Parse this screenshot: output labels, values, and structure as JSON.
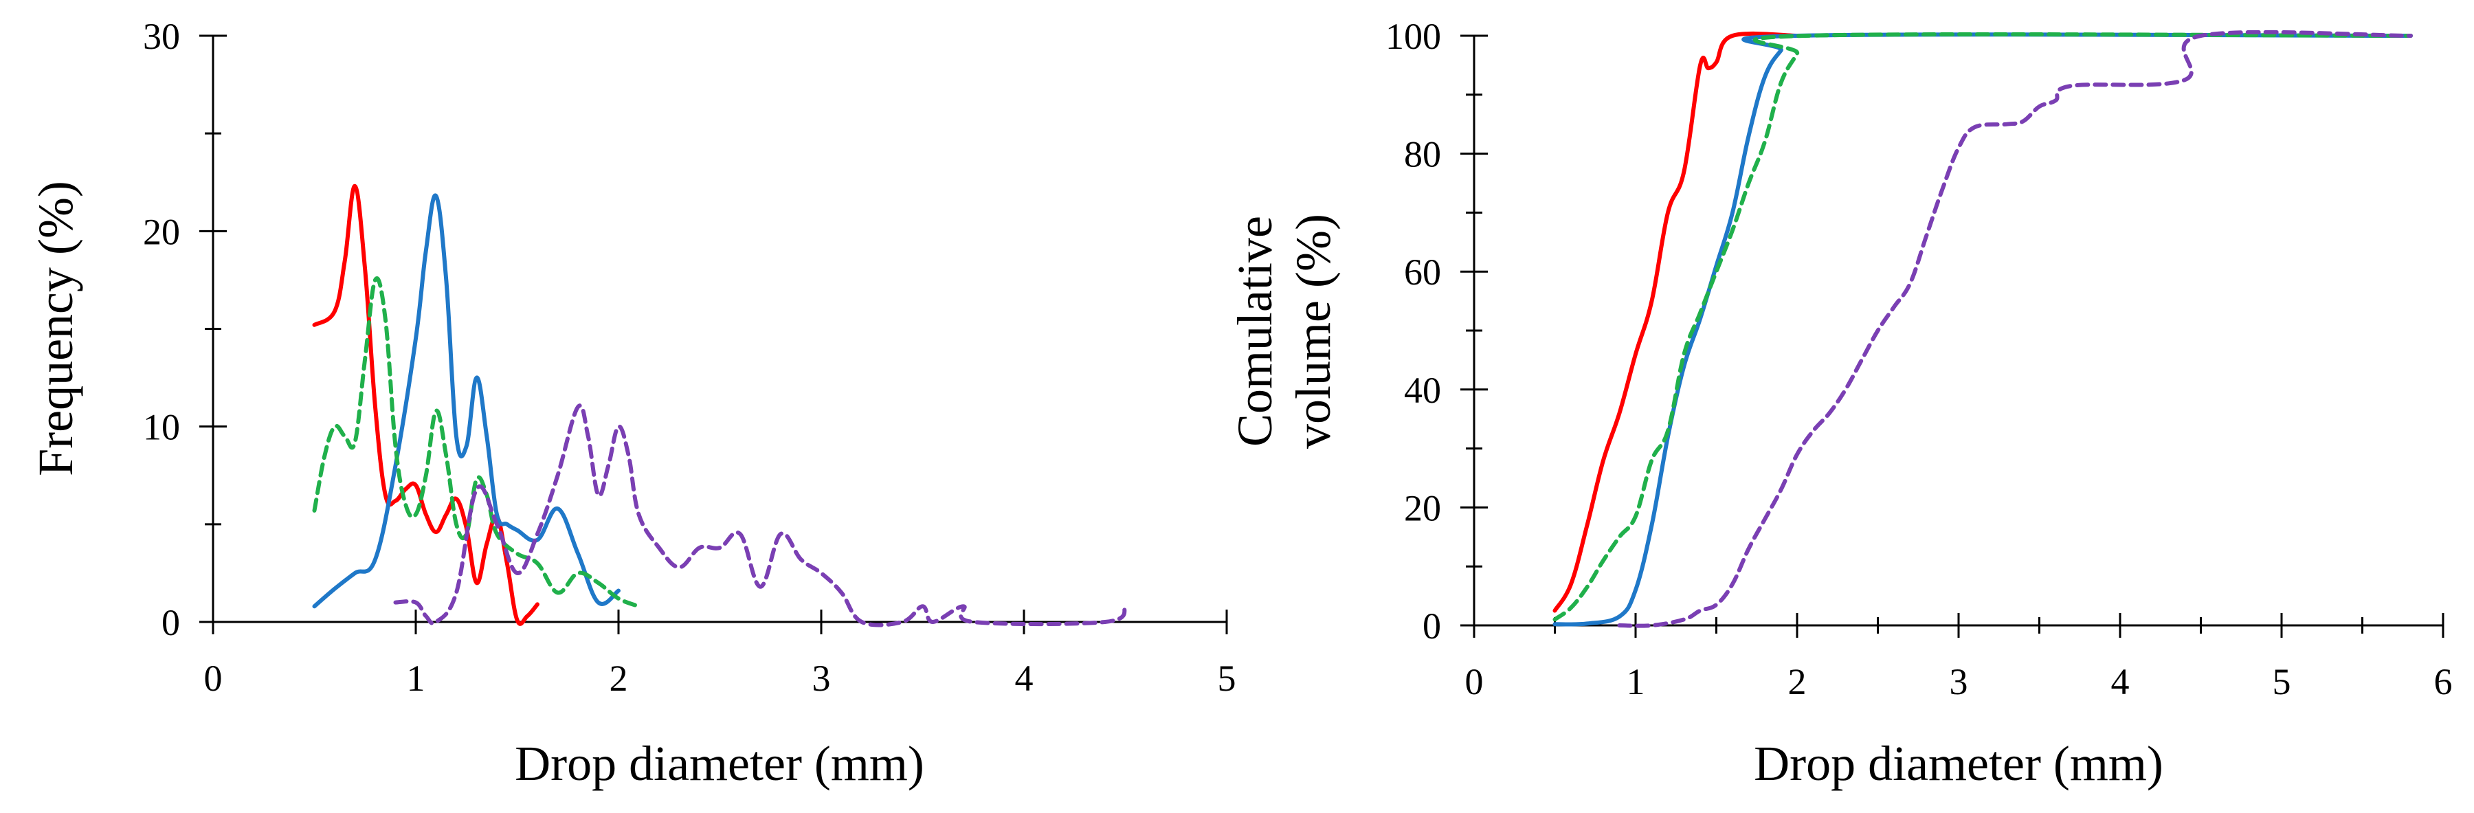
{
  "chart_data": [
    {
      "type": "line",
      "xlabel": "Drop diameter (mm)",
      "ylabel": "Frequency (%)",
      "xlim": [
        0,
        5
      ],
      "ylim": [
        0,
        30
      ],
      "xticks": [
        "0",
        "1",
        "2",
        "3",
        "4",
        "5"
      ],
      "yticks": [
        "0",
        "10",
        "20",
        "30"
      ],
      "grid": false,
      "series": [
        {
          "name": "series-red-solid",
          "color": "#ff0000",
          "dash": "solid",
          "points": [
            [
              0.5,
              15.2
            ],
            [
              0.6,
              15.9
            ],
            [
              0.65,
              18.5
            ],
            [
              0.7,
              22.3
            ],
            [
              0.75,
              18.0
            ],
            [
              0.8,
              11.0
            ],
            [
              0.85,
              6.5
            ],
            [
              0.9,
              6.2
            ],
            [
              0.95,
              6.8
            ],
            [
              1.0,
              7.0
            ],
            [
              1.05,
              5.5
            ],
            [
              1.1,
              4.6
            ],
            [
              1.15,
              5.5
            ],
            [
              1.2,
              6.3
            ],
            [
              1.25,
              4.8
            ],
            [
              1.3,
              2.0
            ],
            [
              1.35,
              4.0
            ],
            [
              1.4,
              5.4
            ],
            [
              1.45,
              3.0
            ],
            [
              1.5,
              0.1
            ],
            [
              1.55,
              0.3
            ],
            [
              1.6,
              0.9
            ]
          ]
        },
        {
          "name": "series-blue-solid",
          "color": "#1f78c8",
          "dash": "solid",
          "points": [
            [
              0.5,
              0.8
            ],
            [
              0.6,
              1.7
            ],
            [
              0.7,
              2.5
            ],
            [
              0.8,
              3.2
            ],
            [
              0.9,
              8.0
            ],
            [
              1.0,
              14.5
            ],
            [
              1.05,
              19.0
            ],
            [
              1.1,
              21.8
            ],
            [
              1.15,
              17.5
            ],
            [
              1.2,
              9.5
            ],
            [
              1.25,
              9.0
            ],
            [
              1.3,
              12.5
            ],
            [
              1.35,
              9.5
            ],
            [
              1.4,
              5.5
            ],
            [
              1.45,
              5.0
            ],
            [
              1.5,
              4.7
            ],
            [
              1.6,
              4.2
            ],
            [
              1.7,
              5.8
            ],
            [
              1.8,
              3.5
            ],
            [
              1.9,
              1.0
            ],
            [
              2.0,
              1.6
            ]
          ]
        },
        {
          "name": "series-green-dashed",
          "color": "#20b04b",
          "dash": "dashed",
          "points": [
            [
              0.5,
              5.7
            ],
            [
              0.55,
              8.5
            ],
            [
              0.6,
              10.0
            ],
            [
              0.65,
              9.5
            ],
            [
              0.7,
              9.2
            ],
            [
              0.75,
              13.5
            ],
            [
              0.8,
              17.5
            ],
            [
              0.85,
              15.5
            ],
            [
              0.9,
              9.0
            ],
            [
              0.95,
              6.0
            ],
            [
              1.0,
              5.5
            ],
            [
              1.05,
              7.5
            ],
            [
              1.1,
              10.8
            ],
            [
              1.15,
              8.5
            ],
            [
              1.2,
              5.0
            ],
            [
              1.25,
              4.5
            ],
            [
              1.3,
              7.3
            ],
            [
              1.35,
              6.5
            ],
            [
              1.4,
              4.5
            ],
            [
              1.5,
              3.5
            ],
            [
              1.6,
              3.0
            ],
            [
              1.7,
              1.5
            ],
            [
              1.8,
              2.5
            ],
            [
              1.9,
              2.0
            ],
            [
              2.0,
              1.2
            ],
            [
              2.1,
              0.8
            ]
          ]
        },
        {
          "name": "series-purple-dashed",
          "color": "#7a3fb3",
          "dash": "dashed",
          "points": [
            [
              0.9,
              1.0
            ],
            [
              1.0,
              1.0
            ],
            [
              1.05,
              0.3
            ],
            [
              1.1,
              0.0
            ],
            [
              1.2,
              1.5
            ],
            [
              1.3,
              6.8
            ],
            [
              1.4,
              5.0
            ],
            [
              1.5,
              2.5
            ],
            [
              1.6,
              4.5
            ],
            [
              1.7,
              7.5
            ],
            [
              1.8,
              11.0
            ],
            [
              1.85,
              9.5
            ],
            [
              1.9,
              6.5
            ],
            [
              1.95,
              8.0
            ],
            [
              2.0,
              10.0
            ],
            [
              2.05,
              8.5
            ],
            [
              2.1,
              5.5
            ],
            [
              2.2,
              3.8
            ],
            [
              2.3,
              2.8
            ],
            [
              2.4,
              3.8
            ],
            [
              2.5,
              3.8
            ],
            [
              2.6,
              4.5
            ],
            [
              2.7,
              1.8
            ],
            [
              2.8,
              4.5
            ],
            [
              2.9,
              3.2
            ],
            [
              3.0,
              2.5
            ],
            [
              3.1,
              1.5
            ],
            [
              3.2,
              0.0
            ],
            [
              3.4,
              0.0
            ],
            [
              3.5,
              0.8
            ],
            [
              3.55,
              0.0
            ],
            [
              3.7,
              0.8
            ],
            [
              3.75,
              0.0
            ],
            [
              4.4,
              0.0
            ],
            [
              4.5,
              0.8
            ]
          ]
        }
      ]
    },
    {
      "type": "line",
      "xlabel": "Drop diameter (mm)",
      "ylabel_lines": [
        "Comulative",
        "volume (%)"
      ],
      "xlim": [
        0,
        6
      ],
      "ylim": [
        0,
        100
      ],
      "xticks": [
        "0",
        "1",
        "2",
        "3",
        "4",
        "5",
        "6"
      ],
      "yticks": [
        "0",
        "20",
        "40",
        "60",
        "80",
        "100"
      ],
      "grid": false,
      "series": [
        {
          "name": "series-red-solid",
          "color": "#ff0000",
          "dash": "solid",
          "points": [
            [
              0.5,
              2.5
            ],
            [
              0.6,
              7.0
            ],
            [
              0.7,
              17.0
            ],
            [
              0.8,
              28.0
            ],
            [
              0.9,
              36.0
            ],
            [
              1.0,
              46.0
            ],
            [
              1.1,
              55.0
            ],
            [
              1.2,
              70.0
            ],
            [
              1.3,
              77.0
            ],
            [
              1.4,
              95.0
            ],
            [
              1.45,
              94.5
            ],
            [
              1.5,
              95.5
            ],
            [
              1.6,
              100.0
            ],
            [
              2.0,
              100.0
            ]
          ]
        },
        {
          "name": "series-blue-solid",
          "color": "#1f78c8",
          "dash": "solid",
          "points": [
            [
              0.5,
              0.2
            ],
            [
              0.7,
              0.3
            ],
            [
              0.9,
              1.5
            ],
            [
              1.0,
              6.0
            ],
            [
              1.1,
              17.0
            ],
            [
              1.2,
              32.0
            ],
            [
              1.3,
              44.0
            ],
            [
              1.4,
              52.0
            ],
            [
              1.5,
              61.0
            ],
            [
              1.6,
              70.0
            ],
            [
              1.7,
              83.0
            ],
            [
              1.8,
              93.0
            ],
            [
              1.9,
              97.5
            ],
            [
              2.0,
              100.0
            ],
            [
              5.8,
              100.0
            ]
          ]
        },
        {
          "name": "series-green-dashed",
          "color": "#20b04b",
          "dash": "dashed",
          "points": [
            [
              0.5,
              1.0
            ],
            [
              0.6,
              3.0
            ],
            [
              0.7,
              6.5
            ],
            [
              0.8,
              11.0
            ],
            [
              0.9,
              15.0
            ],
            [
              1.0,
              18.5
            ],
            [
              1.1,
              28.0
            ],
            [
              1.2,
              33.0
            ],
            [
              1.3,
              46.0
            ],
            [
              1.4,
              53.0
            ],
            [
              1.5,
              60.0
            ],
            [
              1.6,
              67.0
            ],
            [
              1.7,
              75.0
            ],
            [
              1.8,
              82.0
            ],
            [
              1.9,
              92.0
            ],
            [
              2.0,
              97.0
            ],
            [
              2.05,
              100.0
            ],
            [
              5.8,
              100.0
            ]
          ]
        },
        {
          "name": "series-purple-dashed",
          "color": "#7a3fb3",
          "dash": "dashed",
          "points": [
            [
              0.9,
              0.0
            ],
            [
              1.1,
              0.0
            ],
            [
              1.3,
              1.0
            ],
            [
              1.4,
              2.5
            ],
            [
              1.5,
              3.5
            ],
            [
              1.6,
              7.0
            ],
            [
              1.7,
              13.0
            ],
            [
              1.8,
              18.0
            ],
            [
              1.9,
              23.0
            ],
            [
              2.0,
              29.0
            ],
            [
              2.1,
              33.0
            ],
            [
              2.2,
              36.0
            ],
            [
              2.3,
              40.0
            ],
            [
              2.4,
              45.0
            ],
            [
              2.5,
              50.0
            ],
            [
              2.6,
              54.0
            ],
            [
              2.7,
              58.0
            ],
            [
              2.8,
              66.0
            ],
            [
              2.9,
              74.0
            ],
            [
              3.0,
              81.0
            ],
            [
              3.1,
              84.5
            ],
            [
              3.3,
              85.0
            ],
            [
              3.4,
              85.5
            ],
            [
              3.5,
              88.0
            ],
            [
              3.6,
              89.0
            ],
            [
              3.7,
              91.5
            ],
            [
              4.4,
              92.5
            ],
            [
              4.5,
              100.0
            ],
            [
              5.8,
              100.0
            ]
          ]
        }
      ]
    }
  ]
}
